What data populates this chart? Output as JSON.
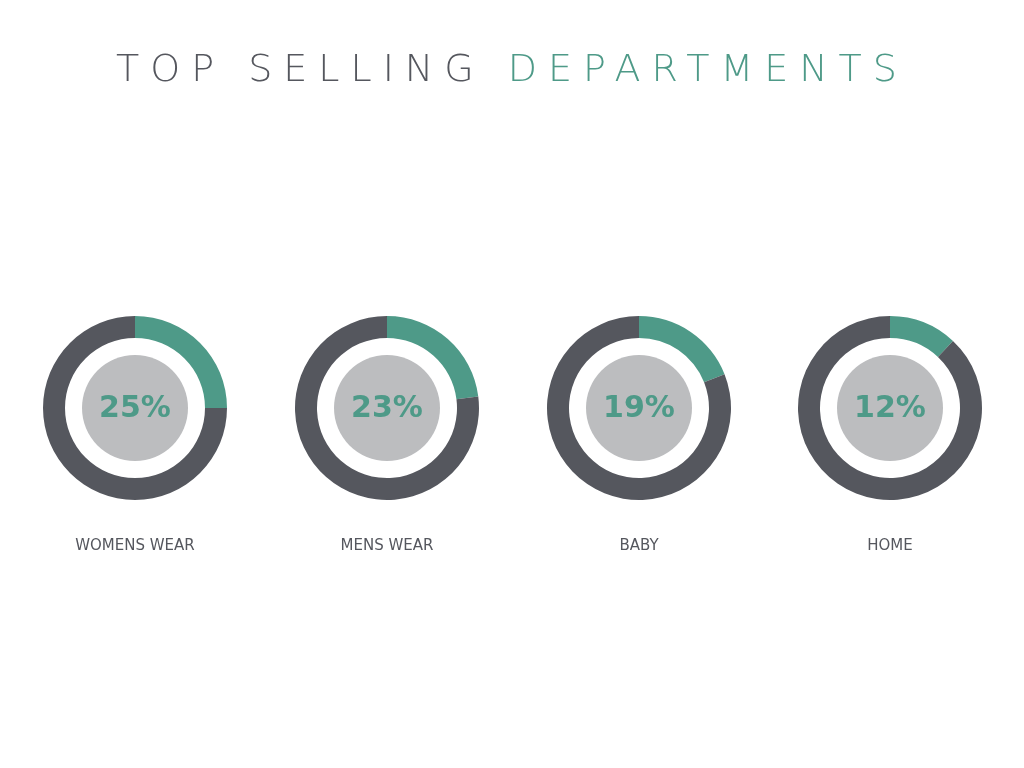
{
  "chart_data": [
    {
      "type": "donut",
      "title": "TOP SELLING DEPARTMENTS",
      "xlabel": "WOMENS WEAR",
      "categories": [
        null,
        null
      ],
      "values": [
        25,
        75
      ],
      "colors": [
        "#4e9a88",
        "#55575e"
      ],
      "annotations": [
        "25%"
      ]
    },
    {
      "type": "donut",
      "xlabel": "MENS WEAR",
      "categories": [
        null,
        null
      ],
      "values": [
        23,
        77
      ],
      "colors": [
        "#4e9a88",
        "#55575e"
      ],
      "annotations": [
        "23%"
      ]
    },
    {
      "type": "donut",
      "xlabel": "BABY",
      "categories": [
        null,
        null
      ],
      "values": [
        19,
        81
      ],
      "colors": [
        "#4e9a88",
        "#55575e"
      ],
      "annotations": [
        "19%"
      ]
    },
    {
      "type": "donut",
      "xlabel": "HOME",
      "categories": [
        null,
        null
      ],
      "values": [
        12,
        88
      ],
      "colors": [
        "#4e9a88",
        "#55575e"
      ],
      "annotations": [
        "12%"
      ]
    }
  ]
}
